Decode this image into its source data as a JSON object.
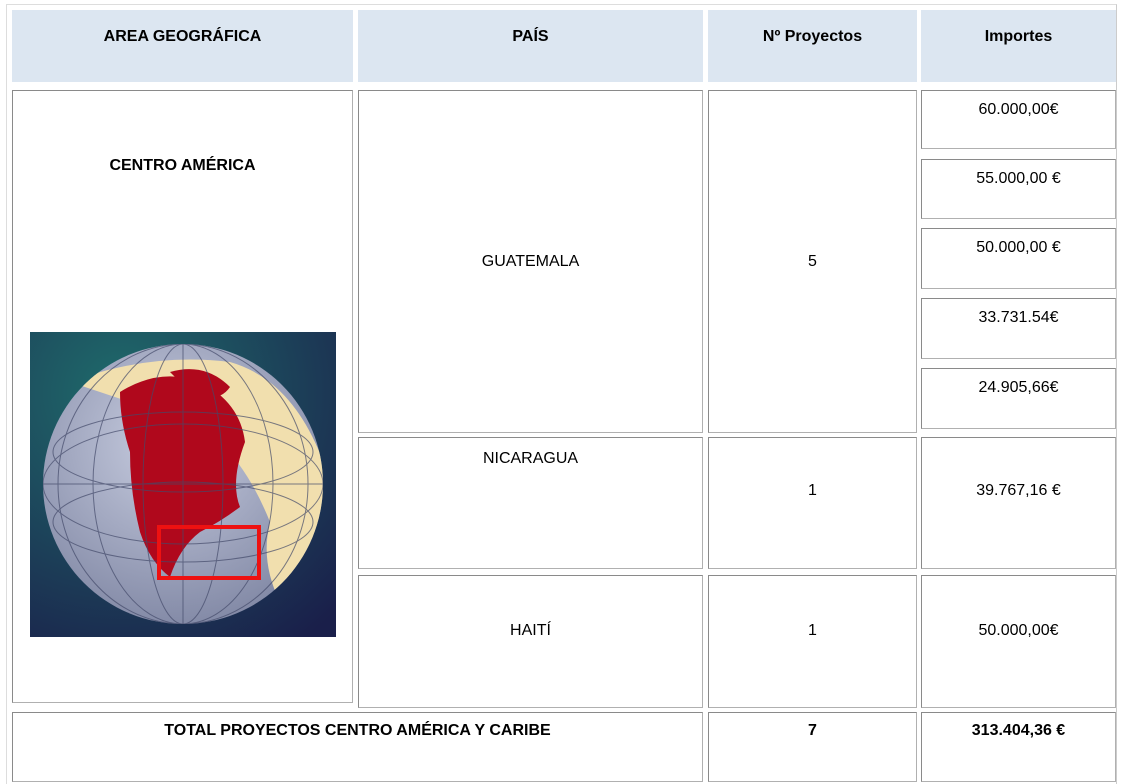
{
  "table": {
    "header": [
      "AREA GEOGRÁFICA",
      "PAÍS",
      "Nº Proyectos",
      "Importes"
    ],
    "area": "CENTRO AMÉRICA",
    "rows": [
      {
        "country": "GUATEMALA",
        "projects": "5",
        "amounts": [
          "60.000,00€",
          "55.000,00 €",
          "50.000,00 €",
          "33.731.54€",
          "24.905,66€"
        ]
      },
      {
        "country": "NICARAGUA",
        "projects": "1",
        "amounts": [
          "39.767,16 €"
        ]
      },
      {
        "country": "HAITÍ",
        "projects": "1",
        "amounts": [
          "50.000,00€"
        ]
      }
    ],
    "total": {
      "label": "TOTAL PROYECTOS CENTRO AMÉRICA Y CARIBE",
      "projects": "7",
      "amount": "313.404,36 €"
    }
  }
}
